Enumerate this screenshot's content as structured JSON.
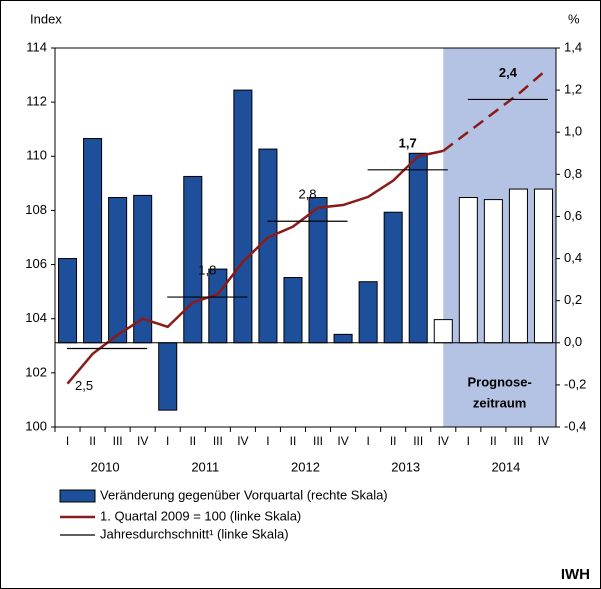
{
  "chart_data": {
    "type": "combo",
    "y_label": "Index",
    "y2_label": "%",
    "categories": [
      "I",
      "II",
      "III",
      "IV",
      "I",
      "II",
      "III",
      "IV",
      "I",
      "II",
      "III",
      "IV",
      "I",
      "II",
      "III",
      "IV",
      "I",
      "II",
      "III",
      "IV"
    ],
    "years": [
      "2010",
      "2011",
      "2012",
      "2013",
      "2014"
    ],
    "forecast_start": 15,
    "forecast_color": "#b4c3e4",
    "forecast_label": [
      "Prognose-",
      "zeitraum"
    ],
    "ylim": [
      100,
      114
    ],
    "yticks": [
      100,
      102,
      104,
      106,
      108,
      110,
      112,
      114
    ],
    "y2lim": [
      -0.4,
      1.4
    ],
    "y2ticks": [
      {
        "value": -0.4,
        "label": "-0,4"
      },
      {
        "value": -0.2,
        "label": "-0,2"
      },
      {
        "value": 0,
        "label": "0,0"
      },
      {
        "value": 0.2,
        "label": "0,2"
      },
      {
        "value": 0.4,
        "label": "0,4"
      },
      {
        "value": 0.6,
        "label": "0,6"
      },
      {
        "value": 0.8,
        "label": "0,8"
      },
      {
        "value": 1.0,
        "label": "1,0"
      },
      {
        "value": 1.2,
        "label": "1,2"
      },
      {
        "value": 1.4,
        "label": "1,4"
      }
    ],
    "series": [
      {
        "name": "Veränderung gegenüber Vorquartal (rechte Skala)",
        "type": "bar",
        "axis": "y2",
        "color": "#1d4f9b",
        "values": [
          0.4,
          0.97,
          0.69,
          0.7,
          -0.32,
          0.79,
          0.35,
          1.2,
          0.92,
          0.31,
          0.69,
          0.04,
          0.29,
          0.62,
          0.9,
          0.11,
          0.69,
          0.68,
          0.73,
          0.73
        ]
      },
      {
        "name": "1. Quartal 2009 = 100 (linke Skala)",
        "type": "line",
        "color": "#8b1a1a",
        "values": [
          101.6,
          102.7,
          103.4,
          104.0,
          103.7,
          104.6,
          104.9,
          106.1,
          107.0,
          107.4,
          108.1,
          108.2,
          108.5,
          109.1,
          110.0,
          110.2,
          110.9,
          111.6,
          112.3,
          113.1
        ]
      }
    ],
    "annual_average": {
      "name": "Jahresdurchschnitt¹ (linke Skala)",
      "color": "#000000",
      "values": [
        102.9,
        104.8,
        107.6,
        109.5,
        112.1
      ],
      "labels": [
        "2,5",
        "1,8",
        "2,8",
        "1,7",
        "2,4"
      ]
    },
    "source": "IWH"
  }
}
